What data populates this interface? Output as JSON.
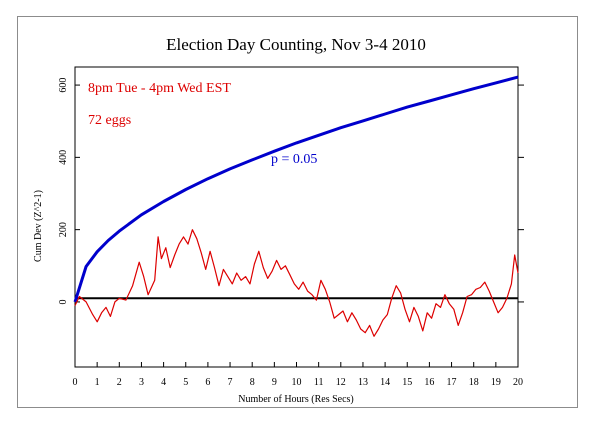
{
  "chart_data": {
    "type": "line",
    "title": "Election Day Counting, Nov 3-4 2010",
    "xlabel": "Number of Hours (Res Secs)",
    "ylabel": "Cum Dev (Z^2-1)",
    "xlim": [
      0,
      20
    ],
    "ylim": [
      -180,
      650
    ],
    "x_ticks": [
      0,
      1,
      2,
      3,
      4,
      5,
      6,
      7,
      8,
      9,
      10,
      11,
      12,
      13,
      14,
      15,
      16,
      17,
      18,
      19,
      20
    ],
    "y_ticks": [
      0,
      200,
      400,
      600
    ],
    "grid": false,
    "annotations": [
      "8pm Tue - 4pm Wed EST",
      "72 eggs",
      "p = 0.05"
    ],
    "series": [
      {
        "name": "p = 0.05",
        "color": "#0000cc",
        "x": [
          0,
          0.5,
          1,
          1.5,
          2,
          3,
          4,
          5,
          6,
          7,
          8,
          9,
          10,
          11,
          12,
          13,
          14,
          15,
          16,
          17,
          18,
          19,
          20
        ],
        "values": [
          0,
          98,
          139,
          170,
          196,
          241,
          278,
          311,
          341,
          368,
          393,
          417,
          440,
          461,
          482,
          501,
          520,
          539,
          556,
          573,
          590,
          606,
          622
        ]
      },
      {
        "color": "#dd0000",
        "x": [
          0,
          0.2,
          0.5,
          0.8,
          1.0,
          1.2,
          1.4,
          1.6,
          1.8,
          2.0,
          2.3,
          2.6,
          2.9,
          3.1,
          3.3,
          3.6,
          3.75,
          3.9,
          4.1,
          4.3,
          4.5,
          4.7,
          4.9,
          5.1,
          5.3,
          5.5,
          5.7,
          5.9,
          6.1,
          6.3,
          6.5,
          6.7,
          6.9,
          7.1,
          7.3,
          7.5,
          7.7,
          7.9,
          8.1,
          8.3,
          8.5,
          8.7,
          8.9,
          9.1,
          9.3,
          9.5,
          9.7,
          9.9,
          10.1,
          10.3,
          10.5,
          10.7,
          10.9,
          11.1,
          11.3,
          11.5,
          11.7,
          11.9,
          12.1,
          12.3,
          12.5,
          12.7,
          12.9,
          13.1,
          13.3,
          13.5,
          13.7,
          13.9,
          14.1,
          14.3,
          14.5,
          14.7,
          14.9,
          15.1,
          15.3,
          15.5,
          15.7,
          15.9,
          16.1,
          16.3,
          16.5,
          16.7,
          16.9,
          17.1,
          17.3,
          17.5,
          17.7,
          17.9,
          18.1,
          18.3,
          18.5,
          18.7,
          18.9,
          19.1,
          19.3,
          19.5,
          19.7,
          19.85,
          20.0
        ],
        "values": [
          -10,
          15,
          0,
          -35,
          -55,
          -30,
          -15,
          -40,
          0,
          10,
          5,
          45,
          110,
          70,
          20,
          60,
          180,
          120,
          150,
          95,
          130,
          160,
          180,
          160,
          200,
          175,
          135,
          90,
          140,
          95,
          45,
          90,
          70,
          50,
          80,
          60,
          70,
          50,
          105,
          140,
          95,
          65,
          85,
          115,
          90,
          100,
          75,
          50,
          35,
          55,
          30,
          20,
          5,
          60,
          35,
          0,
          -45,
          -35,
          -25,
          -55,
          -30,
          -50,
          -75,
          -85,
          -65,
          -95,
          -75,
          -50,
          -35,
          10,
          45,
          25,
          -20,
          -55,
          -15,
          -40,
          -80,
          -30,
          -45,
          -5,
          -15,
          20,
          -5,
          -20,
          -65,
          -30,
          15,
          20,
          35,
          40,
          55,
          30,
          0,
          -30,
          -15,
          10,
          50,
          130,
          80
        ]
      }
    ]
  }
}
